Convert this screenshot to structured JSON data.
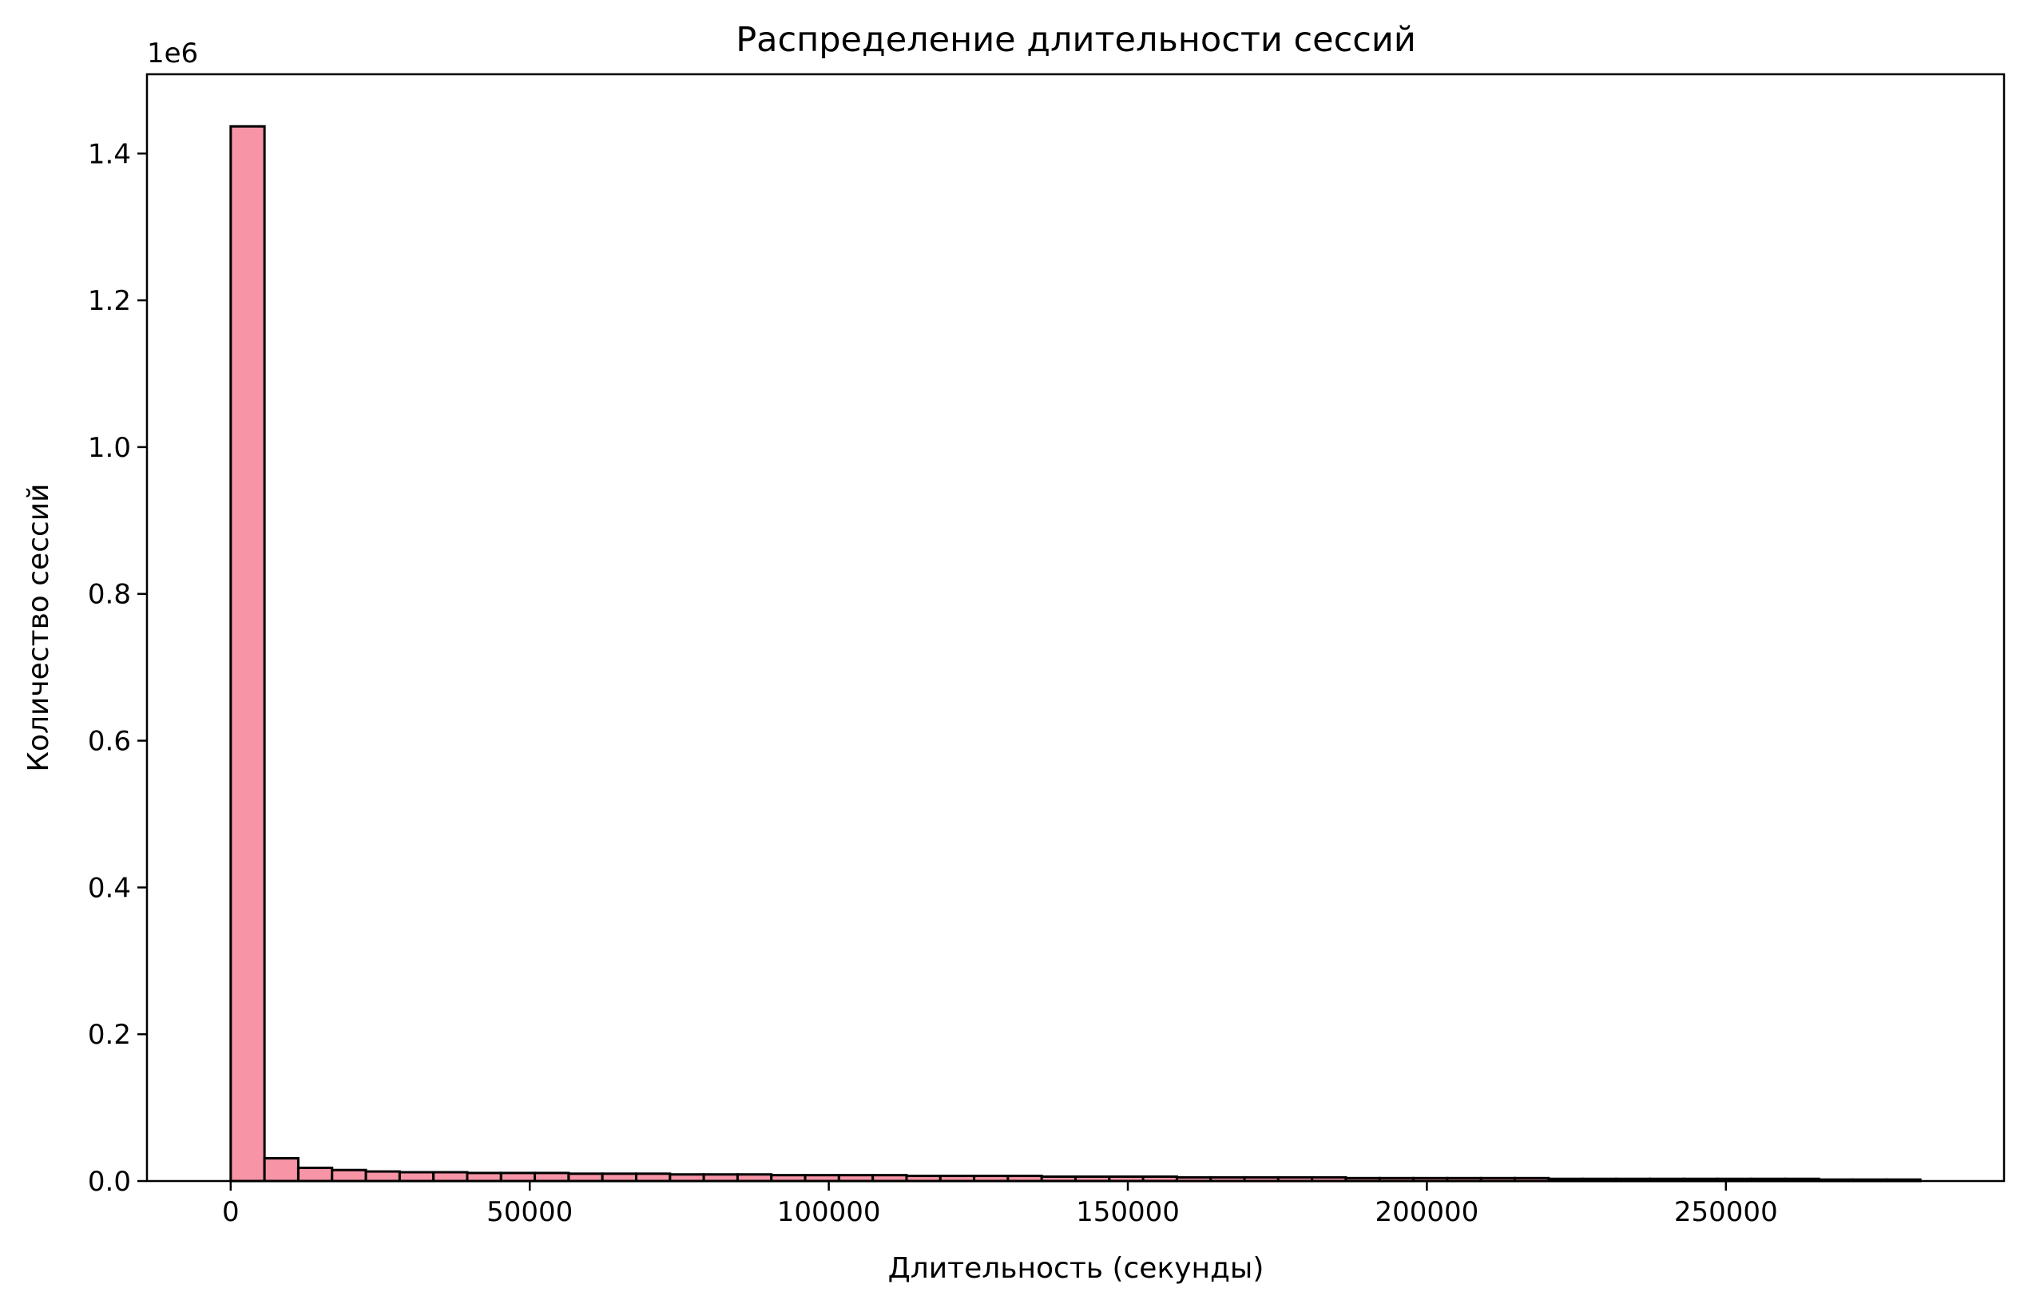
{
  "chart_data": {
    "type": "bar",
    "title": "Распределение длительности сессий",
    "xlabel": "Длительность (секунды)",
    "ylabel": "Количество сессий",
    "y_offset_label": "1e6",
    "xlim": [
      -14000,
      296500
    ],
    "ylim": [
      0,
      1.508
    ],
    "x_ticks": [
      0,
      50000,
      100000,
      150000,
      200000,
      250000
    ],
    "x_tick_labels": [
      "0",
      "50000",
      "100000",
      "150000",
      "200000",
      "250000"
    ],
    "y_ticks": [
      0,
      0.2,
      0.4,
      0.6,
      0.8,
      1.0,
      1.2,
      1.4
    ],
    "y_tick_labels": [
      "0.0",
      "0.2",
      "0.4",
      "0.6",
      "0.8",
      "1.0",
      "1.2",
      "1.4"
    ],
    "y_unit": "millions of sessions",
    "bin_start": 0,
    "bin_width": 5650,
    "values": [
      1.437,
      0.031,
      0.018,
      0.015,
      0.013,
      0.012,
      0.012,
      0.011,
      0.011,
      0.011,
      0.01,
      0.01,
      0.01,
      0.009,
      0.009,
      0.009,
      0.008,
      0.008,
      0.008,
      0.008,
      0.007,
      0.007,
      0.007,
      0.007,
      0.006,
      0.006,
      0.006,
      0.006,
      0.005,
      0.005,
      0.005,
      0.005,
      0.005,
      0.004,
      0.004,
      0.004,
      0.004,
      0.004,
      0.004,
      0.003,
      0.003,
      0.003,
      0.003,
      0.003,
      0.003,
      0.003,
      0.003,
      0.002,
      0.002,
      0.002
    ],
    "bar_color": "#f794a5",
    "edge_color": "#000000",
    "grid": false,
    "legend": "none"
  }
}
